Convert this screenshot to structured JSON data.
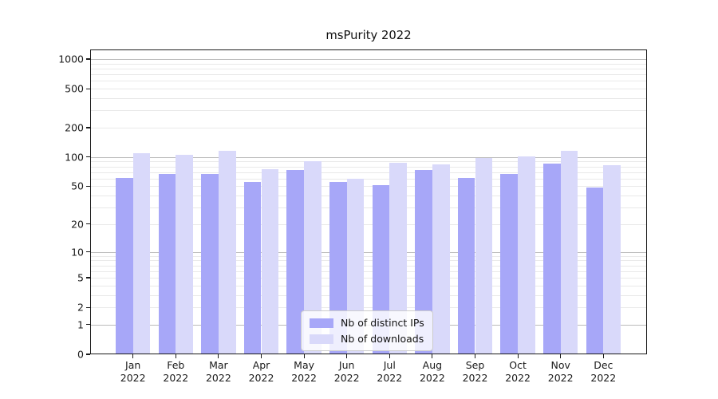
{
  "chart_data": {
    "type": "bar",
    "title": "msPurity 2022",
    "x_tick_months": [
      "Jan",
      "Feb",
      "Mar",
      "Apr",
      "May",
      "Jun",
      "Jul",
      "Aug",
      "Sep",
      "Oct",
      "Nov",
      "Dec"
    ],
    "x_tick_year": "2022",
    "series": [
      {
        "name": "Nb of distinct IPs",
        "color": "#a7a7f8",
        "values": [
          61,
          67,
          67,
          55,
          74,
          55,
          51,
          74,
          61,
          67,
          85,
          49
        ]
      },
      {
        "name": "Nb of downloads",
        "color": "#d9d9fa",
        "values": [
          110,
          105,
          116,
          75,
          90,
          60,
          88,
          84,
          98,
          102,
          115,
          82
        ]
      }
    ],
    "yscale": "log1p",
    "ylim": [
      0,
      1250
    ],
    "y_tick_values": [
      0,
      1,
      2,
      5,
      10,
      20,
      50,
      100,
      200,
      500,
      1000
    ],
    "y_tick_labels": [
      "0",
      "1",
      "2",
      "5",
      "10",
      "20",
      "50",
      "100",
      "200",
      "500",
      "1000"
    ],
    "major_grid_values": [
      1,
      10,
      100,
      1000
    ],
    "minor_grid_values": [
      2,
      3,
      4,
      5,
      6,
      7,
      8,
      9,
      20,
      30,
      40,
      50,
      60,
      70,
      80,
      90,
      200,
      300,
      400,
      500,
      600,
      700,
      800,
      900
    ],
    "grid": true,
    "legend": {
      "position": "lower center",
      "entries": [
        "Nb of distinct IPs",
        "Nb of downloads"
      ]
    },
    "colors": {
      "major_grid": "#bbbbbb",
      "minor_grid": "#e9e9e9",
      "spine": "#1a1a1a",
      "text": "#1a1a1a"
    }
  }
}
